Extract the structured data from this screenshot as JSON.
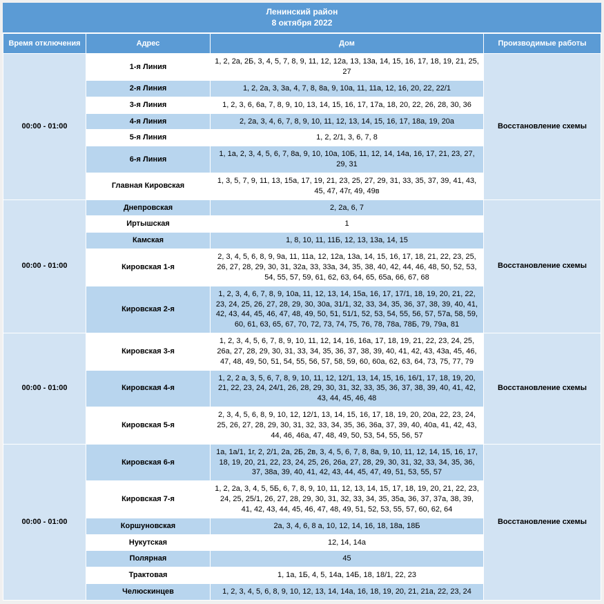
{
  "title": {
    "district": "Ленинский район",
    "date": "8 октября 2022"
  },
  "headers": {
    "time": "Время отключения",
    "address": "Адрес",
    "house": "Дом",
    "work": "Производимые работы"
  },
  "groups": [
    {
      "time": "00:00 - 01:00",
      "work": "Восстановление схемы",
      "rows": [
        {
          "addr": "1-я Линия",
          "house": "1, 2, 2а, 2Б, 3, 4, 5, 7, 8, 9, 11, 12, 12а, 13, 13а, 14, 15, 16, 17, 18, 19, 21, 25, 27"
        },
        {
          "addr": "2-я Линия",
          "house": "1, 2, 2а, 3, 3а, 4, 7, 8, 8а, 9, 10а, 11, 11а, 12, 16, 20, 22, 22/1"
        },
        {
          "addr": "3-я Линия",
          "house": "1, 2, 3, 6, 6а, 7, 8, 9, 10, 13, 14, 15, 16, 17, 17а, 18, 20, 22, 26, 28, 30, 36"
        },
        {
          "addr": "4-я Линия",
          "house": "2, 2а, 3, 4, 6, 7, 8, 9, 10, 11, 12, 13, 14, 15, 16, 17, 18а, 19, 20а"
        },
        {
          "addr": "5-я Линия",
          "house": "1, 2, 2/1, 3, 6, 7, 8"
        },
        {
          "addr": "6-я Линия",
          "house": "1, 1а, 2, 3, 4, 5, 6, 7, 8а, 9, 10, 10а, 10Б, 11, 12, 14, 14а, 16, 17, 21, 23, 27, 29, 31"
        },
        {
          "addr": "Главная Кировская",
          "house": "1, 3, 5, 7, 9, 11, 13, 15а, 17, 19, 21, 23, 25, 27, 29, 31, 33, 35, 37, 39, 41, 43, 45, 47, 47г, 49, 49в"
        }
      ]
    },
    {
      "time": "00:00 - 01:00",
      "work": "Восстановление схемы",
      "rows": [
        {
          "addr": "Днепровская",
          "house": "2, 2а, 6, 7"
        },
        {
          "addr": "Иртышская",
          "house": "1"
        },
        {
          "addr": "Камская",
          "house": "1, 8, 10, 11, 11Б, 12, 13, 13а, 14, 15"
        },
        {
          "addr": "Кировская 1-я",
          "house": "2, 3, 4, 5, 6, 8, 9, 9а, 11, 11а, 12, 12а, 13а, 14, 15, 16, 17, 18, 21, 22, 23, 25, 26, 27, 28, 29, 30, 31, 32а, 33, 33а, 34, 35, 38, 40, 42, 44, 46, 48, 50, 52, 53, 54, 55, 57, 59, 61, 62, 63, 64, 65, 65а, 66, 67, 68"
        },
        {
          "addr": "Кировская 2-я",
          "house": "1, 2, 3, 4, 6, 7, 8, 9, 10а, 11, 12, 13, 14, 15а, 16, 17, 17/1, 18, 19, 20, 21, 22, 23, 24, 25, 26, 27, 28, 29, 30, 30а, 31/1, 32, 33, 34, 35, 36, 37, 38, 39, 40, 41, 42, 43, 44, 45, 46, 47, 48, 49, 50, 51, 51/1, 52, 53, 54, 55, 56, 57, 57а, 58, 59, 60, 61, 63, 65, 67, 70, 72, 73, 74, 75, 76, 78, 78а, 78Б, 79, 79а, 81"
        }
      ]
    },
    {
      "time": "00:00 - 01:00",
      "work": "Восстановление схемы",
      "rows": [
        {
          "addr": "Кировская 3-я",
          "house": "1, 2, 3, 4, 5, 6, 7, 8, 9, 10, 11, 12, 14, 16, 16а, 17, 18, 19, 21, 22, 23, 24, 25, 26а, 27, 28, 29, 30, 31, 33, 34, 35, 36, 37, 38, 39, 40, 41, 42, 43, 43а, 45, 46, 47, 48, 49, 50, 51, 54, 55, 56, 57, 58, 59, 60, 60а, 62, 63, 64, 73, 75, 77, 79"
        },
        {
          "addr": "Кировская 4-я",
          "house": "1, 2, 2 а, 3, 5, 6, 7, 8, 9, 10, 11, 12, 12/1, 13, 14, 15, 16, 16/1, 17, 18, 19, 20, 21, 22, 23, 24, 24/1, 26, 28, 29, 30, 31, 32, 33, 35, 36, 37, 38, 39, 40, 41, 42, 43, 44, 45, 46, 48"
        },
        {
          "addr": "Кировская 5-я",
          "house": "2, 3, 4, 5, 6, 8, 9, 10, 12, 12/1, 13, 14, 15, 16, 17, 18, 19, 20, 20а, 22, 23, 24, 25, 26, 27, 28, 29, 30, 31, 32, 33, 34, 35, 36, 36а, 37, 39, 40, 40а, 41, 42, 43, 44, 46, 46а, 47, 48, 49, 50, 53, 54, 55, 56, 57"
        }
      ]
    },
    {
      "time": "00:00 - 01:00",
      "work": "Восстановление схемы",
      "rows": [
        {
          "addr": "Кировская 6-я",
          "house": "1а, 1а/1, 1г, 2, 2/1, 2а, 2Б, 2в, 3, 4, 5, 6, 7, 8, 8а, 9, 10, 11, 12, 14, 15, 16, 17, 18, 19, 20, 21, 22, 23, 24, 25, 26, 26а, 27, 28, 29, 30, 31, 32, 33, 34, 35, 36, 37, 38а, 39, 40, 41, 42, 43, 44, 45, 47, 49, 51, 53, 55, 57"
        },
        {
          "addr": "Кировская 7-я",
          "house": "1, 2, 2а, 3, 4, 5, 5Б, 6, 7, 8, 9, 10, 11, 12, 13, 14, 15, 17, 18, 19, 20, 21, 22, 23, 24, 25, 25/1, 26, 27, 28, 29, 30, 31, 32, 33, 34, 35, 35а, 36, 37, 37а, 38, 39, 41, 42, 43, 44, 45, 46, 47, 48, 49, 51, 52, 53, 55, 57, 60, 62, 64"
        },
        {
          "addr": "Коршуновская",
          "house": "2а, 3, 4, 6, 8 а, 10, 12, 14, 16, 18, 18а, 18Б"
        },
        {
          "addr": "Нукутская",
          "house": "12, 14, 14а"
        },
        {
          "addr": "Полярная",
          "house": "45"
        },
        {
          "addr": "Трактовая",
          "house": "1, 1а, 1Б, 4, 5, 14а, 14Б, 18, 18/1, 22, 23"
        },
        {
          "addr": "Челюскинцев",
          "house": "1, 2, 3, 4, 5, 6, 8, 9, 10, 12, 13, 14, 14а, 16, 18, 19, 20, 21, 21а, 22, 23, 24"
        }
      ]
    }
  ]
}
